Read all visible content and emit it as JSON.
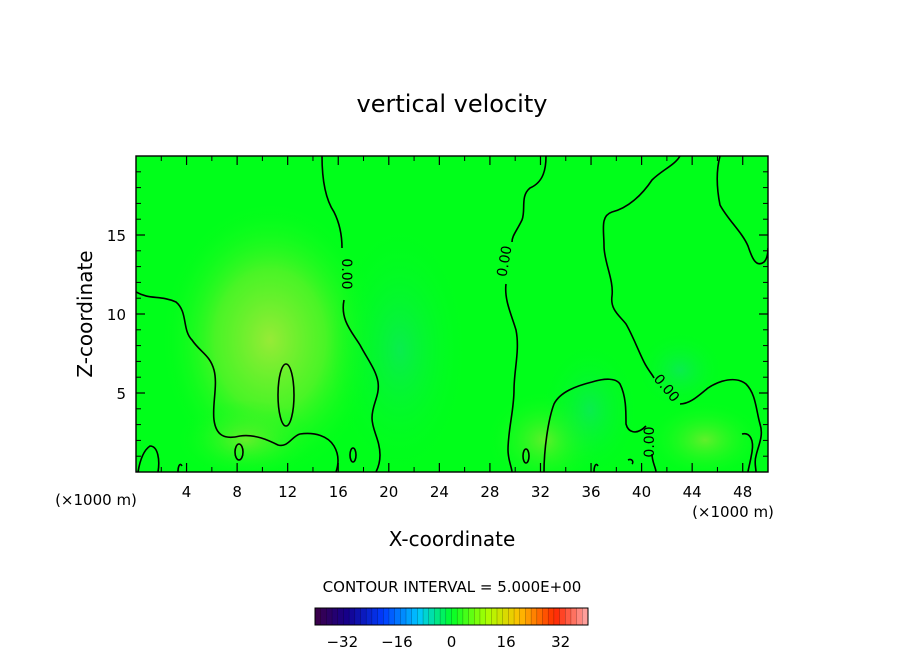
{
  "chart_data": {
    "type": "heatmap",
    "title": "vertical velocity",
    "xlabel": "X-coordinate",
    "ylabel": "Z-coordinate",
    "x_unit": "(×1000 m)",
    "xlim": [
      0,
      50
    ],
    "ylim": [
      0,
      20
    ],
    "x_ticks": [
      4,
      8,
      12,
      16,
      20,
      24,
      28,
      32,
      36,
      40,
      44,
      48
    ],
    "y_ticks": [
      5,
      10,
      15
    ],
    "contour_interval_label": "CONTOUR INTERVAL = 5.000E+00",
    "contour_labels": [
      "0.00",
      "0.00",
      "0.00",
      "0.00"
    ],
    "colorbar": {
      "ticks": [
        -32,
        -16,
        0,
        16,
        32
      ],
      "range": [
        -40,
        40
      ]
    },
    "field_summary": "nearly uniform green (≈0) with weak positive lobe near x=12, z=5",
    "colors": {
      "field": "#00ff1a",
      "weak_positive": "#7eea2a",
      "weak_negative": "#18e86a",
      "contour": "#000000"
    }
  }
}
